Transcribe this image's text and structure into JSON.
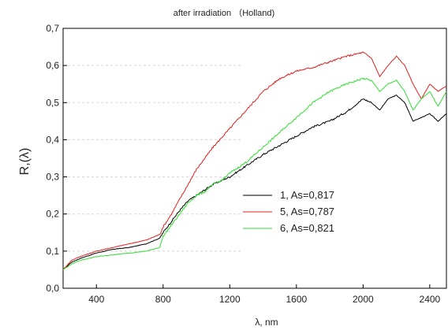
{
  "chart_data": {
    "type": "line",
    "title": "after irradiation （Holland)",
    "xlabel": "λ, nm",
    "ylabel": "R,(λ)",
    "xlim": [
      200,
      2500
    ],
    "ylim": [
      0.0,
      0.7
    ],
    "xticks": [
      400,
      800,
      1200,
      1600,
      2000,
      2400
    ],
    "xtick_labels": [
      "400",
      "800",
      "1200",
      "1600",
      "2000",
      "2400"
    ],
    "yticks": [
      0.0,
      0.1,
      0.2,
      0.3,
      0.4,
      0.5,
      0.6,
      0.7
    ],
    "ytick_labels": [
      "0,0",
      "0,1",
      "0,2",
      "0,3",
      "0,4",
      "0,5",
      "0,6",
      "0,7"
    ],
    "grid": "horizontal dashed, left portion",
    "legend_position": "center-right",
    "series": [
      {
        "name": "1,  As=0,817",
        "color": "#000000",
        "x": [
          200,
          250,
          300,
          400,
          500,
          600,
          700,
          780,
          800,
          850,
          900,
          950,
          1000,
          1050,
          1100,
          1150,
          1200,
          1300,
          1400,
          1500,
          1600,
          1700,
          1800,
          1900,
          2000,
          2050,
          2100,
          2150,
          2200,
          2250,
          2300,
          2350,
          2400,
          2450,
          2500
        ],
        "y": [
          0.05,
          0.07,
          0.08,
          0.095,
          0.105,
          0.11,
          0.12,
          0.135,
          0.15,
          0.18,
          0.21,
          0.235,
          0.25,
          0.265,
          0.28,
          0.29,
          0.3,
          0.33,
          0.36,
          0.385,
          0.41,
          0.435,
          0.45,
          0.475,
          0.51,
          0.5,
          0.48,
          0.51,
          0.52,
          0.5,
          0.45,
          0.46,
          0.47,
          0.45,
          0.47
        ]
      },
      {
        "name": "5,  As=0,787",
        "color": "#e02020",
        "x": [
          200,
          250,
          300,
          400,
          500,
          600,
          700,
          780,
          800,
          850,
          900,
          950,
          1000,
          1050,
          1100,
          1200,
          1300,
          1400,
          1500,
          1600,
          1700,
          1800,
          1900,
          2000,
          2050,
          2100,
          2150,
          2200,
          2250,
          2300,
          2350,
          2400,
          2450,
          2500
        ],
        "y": [
          0.05,
          0.075,
          0.085,
          0.1,
          0.11,
          0.12,
          0.13,
          0.145,
          0.165,
          0.2,
          0.24,
          0.28,
          0.32,
          0.35,
          0.38,
          0.43,
          0.48,
          0.53,
          0.565,
          0.585,
          0.595,
          0.61,
          0.625,
          0.635,
          0.62,
          0.57,
          0.6,
          0.625,
          0.6,
          0.55,
          0.51,
          0.55,
          0.53,
          0.545
        ]
      },
      {
        "name": "6,  As=0,821",
        "color": "#30dd30",
        "x": [
          200,
          250,
          300,
          400,
          500,
          600,
          700,
          780,
          800,
          850,
          900,
          950,
          1000,
          1050,
          1100,
          1150,
          1200,
          1300,
          1400,
          1500,
          1600,
          1700,
          1800,
          1900,
          2000,
          2050,
          2100,
          2150,
          2200,
          2250,
          2300,
          2350,
          2400,
          2450,
          2500
        ],
        "y": [
          0.05,
          0.065,
          0.075,
          0.085,
          0.09,
          0.095,
          0.1,
          0.11,
          0.14,
          0.17,
          0.2,
          0.23,
          0.25,
          0.26,
          0.28,
          0.29,
          0.31,
          0.34,
          0.38,
          0.42,
          0.46,
          0.5,
          0.53,
          0.55,
          0.565,
          0.56,
          0.53,
          0.55,
          0.56,
          0.53,
          0.48,
          0.51,
          0.53,
          0.49,
          0.53
        ]
      }
    ]
  }
}
